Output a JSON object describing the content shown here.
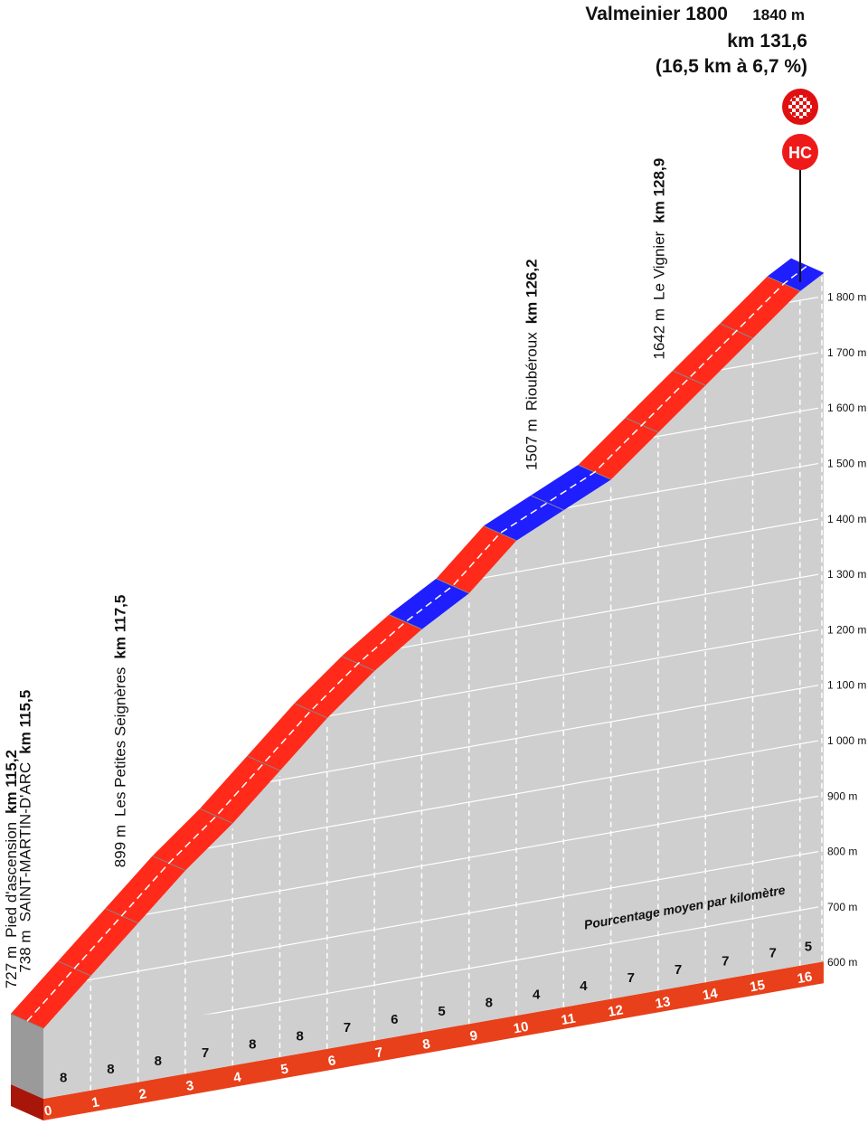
{
  "chart_data": {
    "type": "climb-profile",
    "title": "Valmeinier 1800",
    "summit_altitude": "1840 m",
    "summit_km": "km 131,6",
    "summary": "(16,5 km à 6,7 %)",
    "category": "HC",
    "note": "Pourcentage moyen par kilomètre",
    "start_altitude": 727,
    "xlim": [
      0,
      16.5
    ],
    "xticks": [
      0,
      1,
      2,
      3,
      4,
      5,
      6,
      7,
      8,
      9,
      10,
      11,
      12,
      13,
      14,
      15,
      16
    ],
    "ylim": [
      600,
      1800
    ],
    "yticks": [
      {
        "value": 600,
        "label": "600 m"
      },
      {
        "value": 700,
        "label": "700 m"
      },
      {
        "value": 800,
        "label": "800 m"
      },
      {
        "value": 900,
        "label": "900 m"
      },
      {
        "value": 1000,
        "label": "1 000 m"
      },
      {
        "value": 1100,
        "label": "1 100 m"
      },
      {
        "value": 1200,
        "label": "1 200 m"
      },
      {
        "value": 1300,
        "label": "1 300 m"
      },
      {
        "value": 1400,
        "label": "1 400 m"
      },
      {
        "value": 1500,
        "label": "1 500 m"
      },
      {
        "value": 1600,
        "label": "1 600 m"
      },
      {
        "value": 1700,
        "label": "1 700 m"
      },
      {
        "value": 1800,
        "label": "1 800 m"
      }
    ],
    "gradients": [
      8,
      8,
      8,
      7,
      8,
      8,
      7,
      6,
      5,
      8,
      4,
      4,
      7,
      7,
      7,
      7,
      5
    ],
    "colors": [
      "#ff2a1a",
      "#ff2a1a",
      "#ff2a1a",
      "#ff2a1a",
      "#ff2a1a",
      "#ff2a1a",
      "#ff2a1a",
      "#ff2a1a",
      "#1e1eff",
      "#ff2a1a",
      "#1e1eff",
      "#1e1eff",
      "#ff2a1a",
      "#ff2a1a",
      "#ff2a1a",
      "#ff2a1a",
      "#1e1eff"
    ],
    "waypoints": [
      {
        "at": 0,
        "altitude": "727 m",
        "name": "Pied d'ascension",
        "km": "km 115,2"
      },
      {
        "at": 0.3,
        "altitude": "738 m",
        "name": "SAINT-MARTIN-D'ARC",
        "km": "km 115,5"
      },
      {
        "at": 2.3,
        "altitude": "899 m",
        "name": "Les Petites Seignères",
        "km": "km 117,5"
      },
      {
        "at": 11,
        "altitude": "1507 m",
        "name": "Rioubéroux",
        "km": "km 126,2"
      },
      {
        "at": 13.7,
        "altitude": "1642 m",
        "name": "Le Vignier",
        "km": "km 128,9"
      }
    ]
  }
}
